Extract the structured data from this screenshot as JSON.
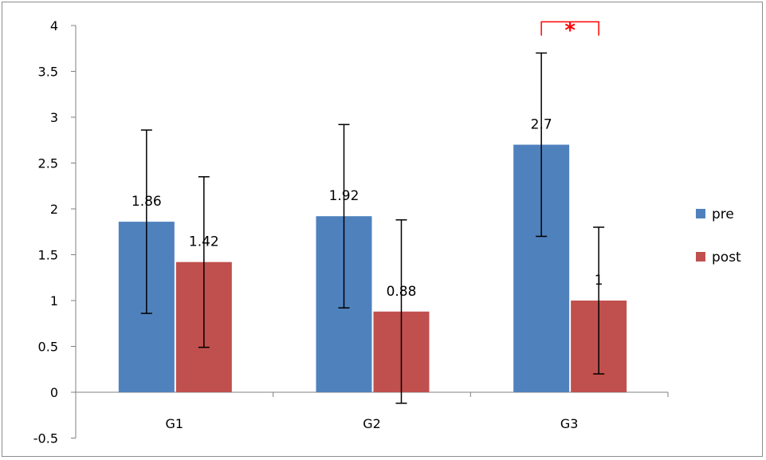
{
  "chart_data": {
    "type": "bar",
    "categories": [
      "G1",
      "G2",
      "G3"
    ],
    "series": [
      {
        "name": "pre",
        "color": "#4f81bd",
        "values": [
          1.86,
          1.92,
          2.7
        ],
        "labels": [
          "1.86",
          "1.92",
          "2.7"
        ],
        "error": [
          1.0,
          1.0,
          1.0
        ]
      },
      {
        "name": "post",
        "color": "#c0504d",
        "values": [
          1.42,
          0.88,
          1.0
        ],
        "labels": [
          "1.42",
          "0.88",
          "1"
        ],
        "error": [
          0.93,
          1.0,
          0.8
        ]
      }
    ],
    "ylim": [
      -0.5,
      4
    ],
    "yticks": [
      "-0.5",
      "0",
      "0.5",
      "1",
      "1.5",
      "2",
      "2.5",
      "3",
      "3.5",
      "4"
    ],
    "ytick_values": [
      -0.5,
      0,
      0.5,
      1,
      1.5,
      2,
      2.5,
      3,
      3.5,
      4
    ],
    "title": "",
    "xlabel": "",
    "ylabel": "",
    "grid": false,
    "legend_position": "right",
    "annotation": {
      "text": "*",
      "color": "#ff0000",
      "category": "G3",
      "bracket_top_value": 4.04,
      "bracket_bottom_value": 3.89
    }
  }
}
